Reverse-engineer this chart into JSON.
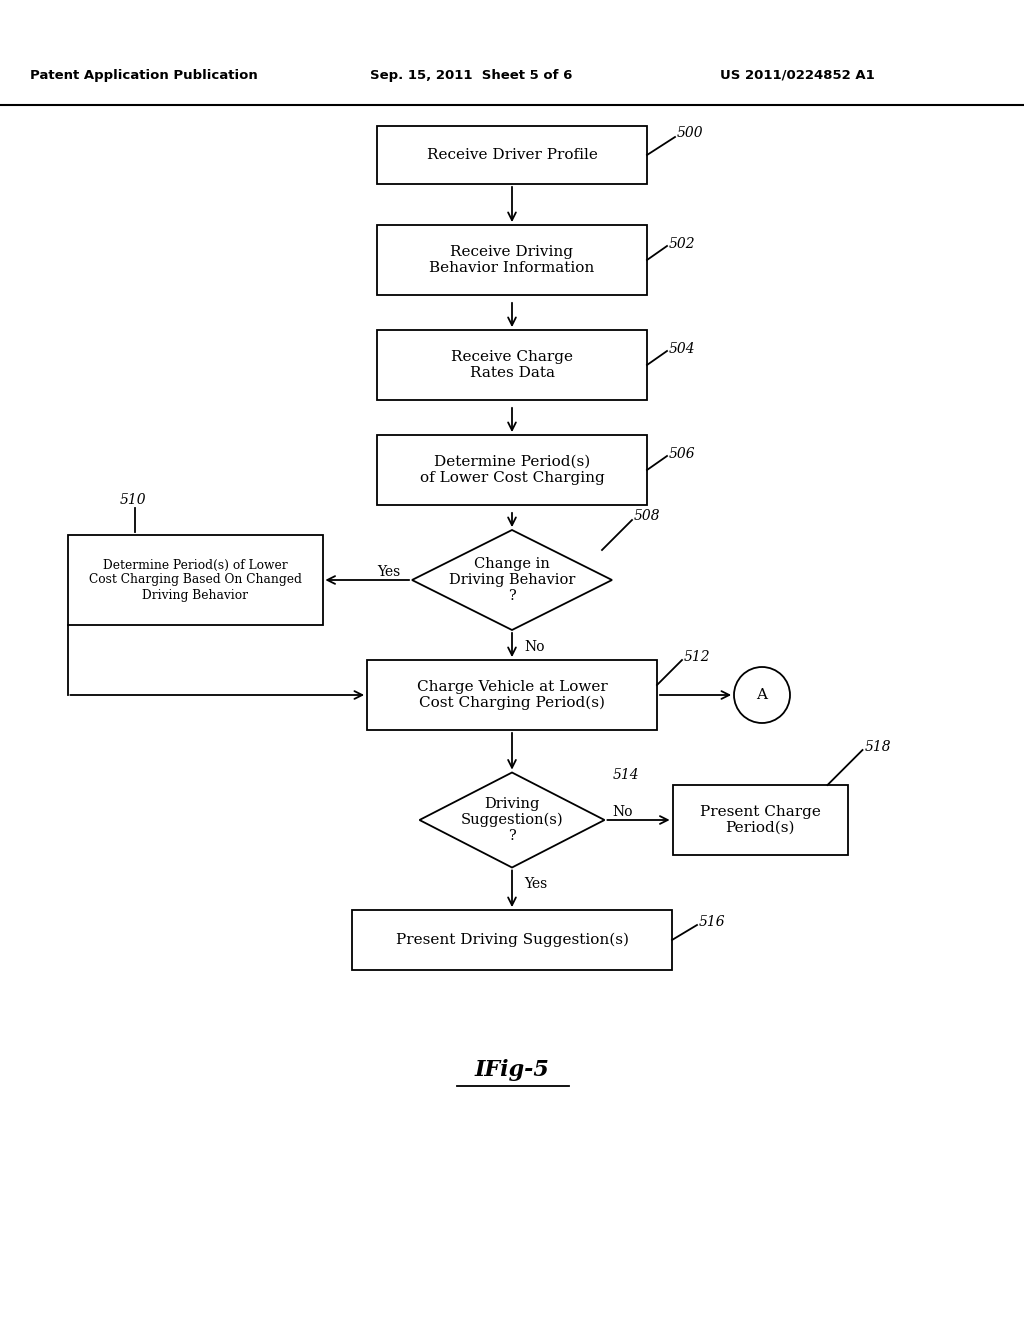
{
  "header_left": "Patent Application Publication",
  "header_mid": "Sep. 15, 2011  Sheet 5 of 6",
  "header_right": "US 2011/0224852 A1",
  "fig_label": "IFig-5",
  "bg_color": "#ffffff",
  "box_color": "#ffffff",
  "box_edge": "#000000",
  "figw": 10.24,
  "figh": 13.2,
  "dpi": 100
}
